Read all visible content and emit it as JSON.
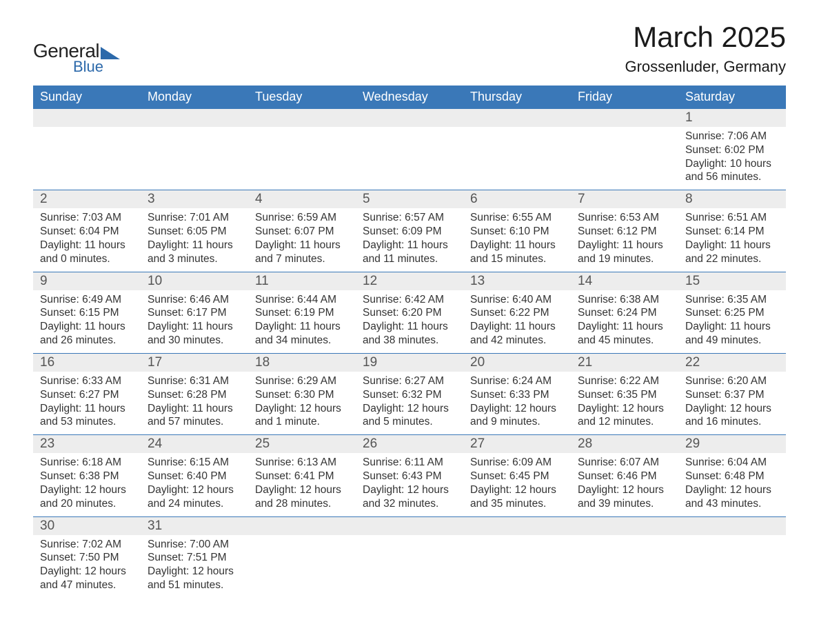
{
  "logo": {
    "word1": "General",
    "word2": "Blue"
  },
  "title": "March 2025",
  "location": "Grossenluder, Germany",
  "colors": {
    "header_bg": "#3a78b8",
    "header_text": "#ffffff",
    "daynum_bg": "#ededed",
    "row_border": "#3a78b8",
    "body_text": "#333333",
    "logo_accent": "#2c69aa"
  },
  "typography": {
    "title_fontsize": 42,
    "location_fontsize": 22,
    "header_fontsize": 18,
    "daynum_fontsize": 19,
    "data_fontsize": 15.5
  },
  "weekdays": [
    "Sunday",
    "Monday",
    "Tuesday",
    "Wednesday",
    "Thursday",
    "Friday",
    "Saturday"
  ],
  "labels": {
    "sunrise": "Sunrise:",
    "sunset": "Sunset:",
    "daylight": "Daylight:"
  },
  "weeks": [
    [
      null,
      null,
      null,
      null,
      null,
      null,
      {
        "n": "1",
        "sr": "7:06 AM",
        "ss": "6:02 PM",
        "dl": "10 hours and 56 minutes."
      }
    ],
    [
      {
        "n": "2",
        "sr": "7:03 AM",
        "ss": "6:04 PM",
        "dl": "11 hours and 0 minutes."
      },
      {
        "n": "3",
        "sr": "7:01 AM",
        "ss": "6:05 PM",
        "dl": "11 hours and 3 minutes."
      },
      {
        "n": "4",
        "sr": "6:59 AM",
        "ss": "6:07 PM",
        "dl": "11 hours and 7 minutes."
      },
      {
        "n": "5",
        "sr": "6:57 AM",
        "ss": "6:09 PM",
        "dl": "11 hours and 11 minutes."
      },
      {
        "n": "6",
        "sr": "6:55 AM",
        "ss": "6:10 PM",
        "dl": "11 hours and 15 minutes."
      },
      {
        "n": "7",
        "sr": "6:53 AM",
        "ss": "6:12 PM",
        "dl": "11 hours and 19 minutes."
      },
      {
        "n": "8",
        "sr": "6:51 AM",
        "ss": "6:14 PM",
        "dl": "11 hours and 22 minutes."
      }
    ],
    [
      {
        "n": "9",
        "sr": "6:49 AM",
        "ss": "6:15 PM",
        "dl": "11 hours and 26 minutes."
      },
      {
        "n": "10",
        "sr": "6:46 AM",
        "ss": "6:17 PM",
        "dl": "11 hours and 30 minutes."
      },
      {
        "n": "11",
        "sr": "6:44 AM",
        "ss": "6:19 PM",
        "dl": "11 hours and 34 minutes."
      },
      {
        "n": "12",
        "sr": "6:42 AM",
        "ss": "6:20 PM",
        "dl": "11 hours and 38 minutes."
      },
      {
        "n": "13",
        "sr": "6:40 AM",
        "ss": "6:22 PM",
        "dl": "11 hours and 42 minutes."
      },
      {
        "n": "14",
        "sr": "6:38 AM",
        "ss": "6:24 PM",
        "dl": "11 hours and 45 minutes."
      },
      {
        "n": "15",
        "sr": "6:35 AM",
        "ss": "6:25 PM",
        "dl": "11 hours and 49 minutes."
      }
    ],
    [
      {
        "n": "16",
        "sr": "6:33 AM",
        "ss": "6:27 PM",
        "dl": "11 hours and 53 minutes."
      },
      {
        "n": "17",
        "sr": "6:31 AM",
        "ss": "6:28 PM",
        "dl": "11 hours and 57 minutes."
      },
      {
        "n": "18",
        "sr": "6:29 AM",
        "ss": "6:30 PM",
        "dl": "12 hours and 1 minute."
      },
      {
        "n": "19",
        "sr": "6:27 AM",
        "ss": "6:32 PM",
        "dl": "12 hours and 5 minutes."
      },
      {
        "n": "20",
        "sr": "6:24 AM",
        "ss": "6:33 PM",
        "dl": "12 hours and 9 minutes."
      },
      {
        "n": "21",
        "sr": "6:22 AM",
        "ss": "6:35 PM",
        "dl": "12 hours and 12 minutes."
      },
      {
        "n": "22",
        "sr": "6:20 AM",
        "ss": "6:37 PM",
        "dl": "12 hours and 16 minutes."
      }
    ],
    [
      {
        "n": "23",
        "sr": "6:18 AM",
        "ss": "6:38 PM",
        "dl": "12 hours and 20 minutes."
      },
      {
        "n": "24",
        "sr": "6:15 AM",
        "ss": "6:40 PM",
        "dl": "12 hours and 24 minutes."
      },
      {
        "n": "25",
        "sr": "6:13 AM",
        "ss": "6:41 PM",
        "dl": "12 hours and 28 minutes."
      },
      {
        "n": "26",
        "sr": "6:11 AM",
        "ss": "6:43 PM",
        "dl": "12 hours and 32 minutes."
      },
      {
        "n": "27",
        "sr": "6:09 AM",
        "ss": "6:45 PM",
        "dl": "12 hours and 35 minutes."
      },
      {
        "n": "28",
        "sr": "6:07 AM",
        "ss": "6:46 PM",
        "dl": "12 hours and 39 minutes."
      },
      {
        "n": "29",
        "sr": "6:04 AM",
        "ss": "6:48 PM",
        "dl": "12 hours and 43 minutes."
      }
    ],
    [
      {
        "n": "30",
        "sr": "7:02 AM",
        "ss": "7:50 PM",
        "dl": "12 hours and 47 minutes."
      },
      {
        "n": "31",
        "sr": "7:00 AM",
        "ss": "7:51 PM",
        "dl": "12 hours and 51 minutes."
      },
      null,
      null,
      null,
      null,
      null
    ]
  ]
}
